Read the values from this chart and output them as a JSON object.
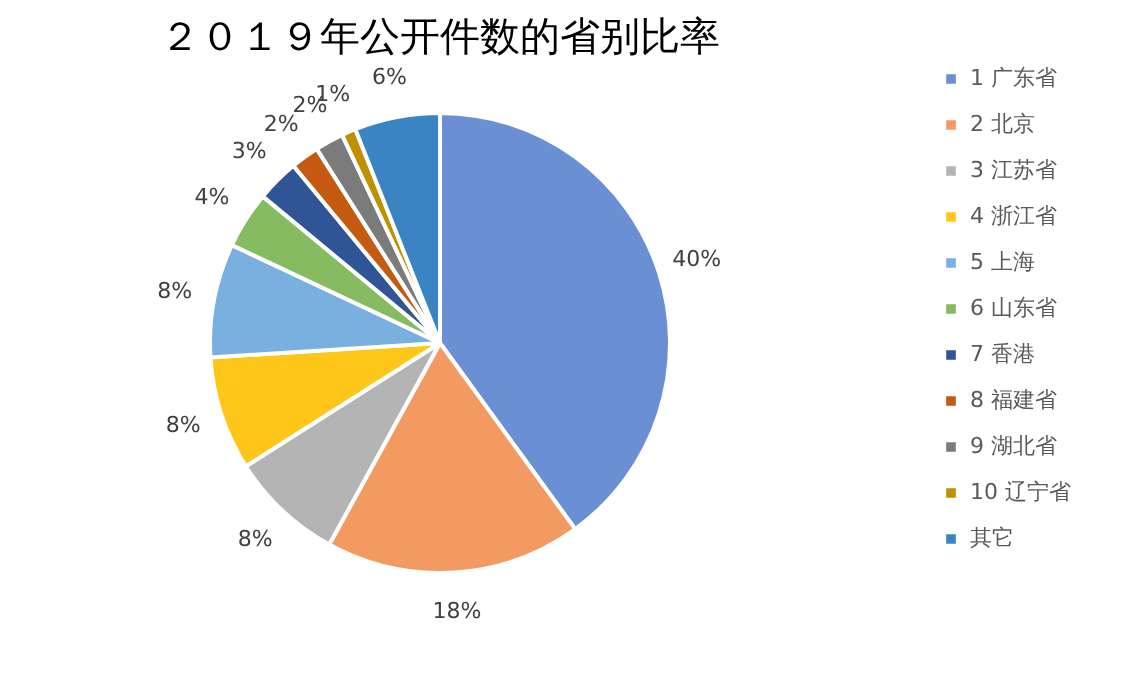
{
  "chart_data": {
    "type": "pie",
    "title": "２０１９年公开件数的省别比率",
    "categories": [
      "1 广东省",
      "2 北京",
      "3 江苏省",
      "4 浙江省",
      "5 上海",
      "6 山东省",
      "7 香港",
      "8 福建省",
      "9 湖北省",
      "10 辽宁省",
      "其它"
    ],
    "values": [
      40,
      18,
      8,
      8,
      8,
      4,
      3,
      2,
      2,
      1,
      6
    ],
    "value_labels": [
      "40%",
      "18%",
      "8%",
      "8%",
      "8%",
      "4%",
      "3%",
      "2%",
      "2%",
      "1%",
      "6%"
    ],
    "colors": [
      "#6a8fd4",
      "#f29a62",
      "#b4b4b4",
      "#ffc61a",
      "#7ab0e0",
      "#86bb62",
      "#2f5597",
      "#c55a11",
      "#7b7b7b",
      "#bf9000",
      "#3a84c4"
    ],
    "legend": "right"
  }
}
